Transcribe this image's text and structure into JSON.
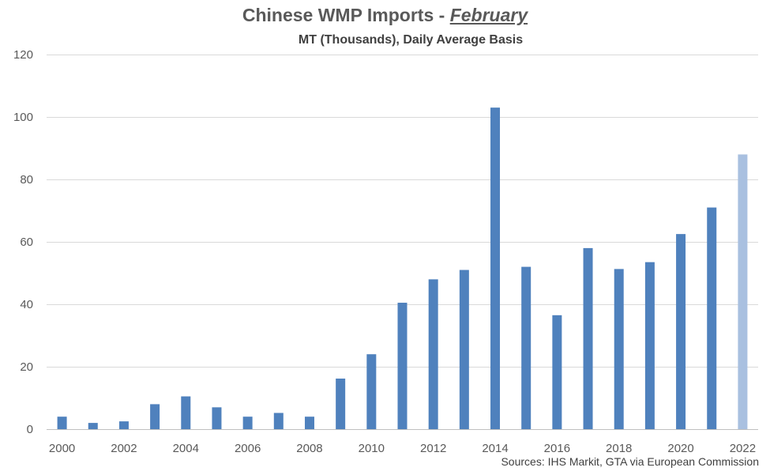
{
  "chart_data": {
    "type": "bar",
    "title_main": "Chinese WMP Imports - ",
    "title_emphasis": "February",
    "subtitle": "MT (Thousands), Daily Average Basis",
    "source": "Sources: IHS Markit, GTA via European Commission",
    "xlabel": "",
    "ylabel": "",
    "ylim": [
      0,
      120
    ],
    "yticks": [
      0,
      20,
      40,
      60,
      80,
      100,
      120
    ],
    "grid": true,
    "categories": [
      "2000",
      "2001",
      "2002",
      "2003",
      "2004",
      "2005",
      "2006",
      "2007",
      "2008",
      "2009",
      "2010",
      "2011",
      "2012",
      "2013",
      "2014",
      "2015",
      "2016",
      "2017",
      "2018",
      "2019",
      "2020",
      "2021",
      "2022"
    ],
    "x_tick_labels": [
      "2000",
      "",
      "2002",
      "",
      "2004",
      "",
      "2006",
      "",
      "2008",
      "",
      "2010",
      "",
      "2012",
      "",
      "2014",
      "",
      "2016",
      "",
      "2018",
      "",
      "2020",
      "",
      "2022"
    ],
    "values": [
      4.0,
      2.0,
      2.5,
      8.0,
      10.5,
      7.0,
      4.0,
      5.2,
      4.0,
      16.2,
      24.0,
      40.5,
      48.0,
      51.0,
      103.0,
      52.0,
      36.5,
      58.0,
      51.3,
      53.5,
      62.5,
      71.0,
      88.0
    ],
    "colors": {
      "bar": "#4f81bd",
      "bar_highlight": "#a9c0e0",
      "grid": "#d9d9d9",
      "axis": "#bfbfbf"
    },
    "highlight_categories": [
      "2022"
    ]
  }
}
